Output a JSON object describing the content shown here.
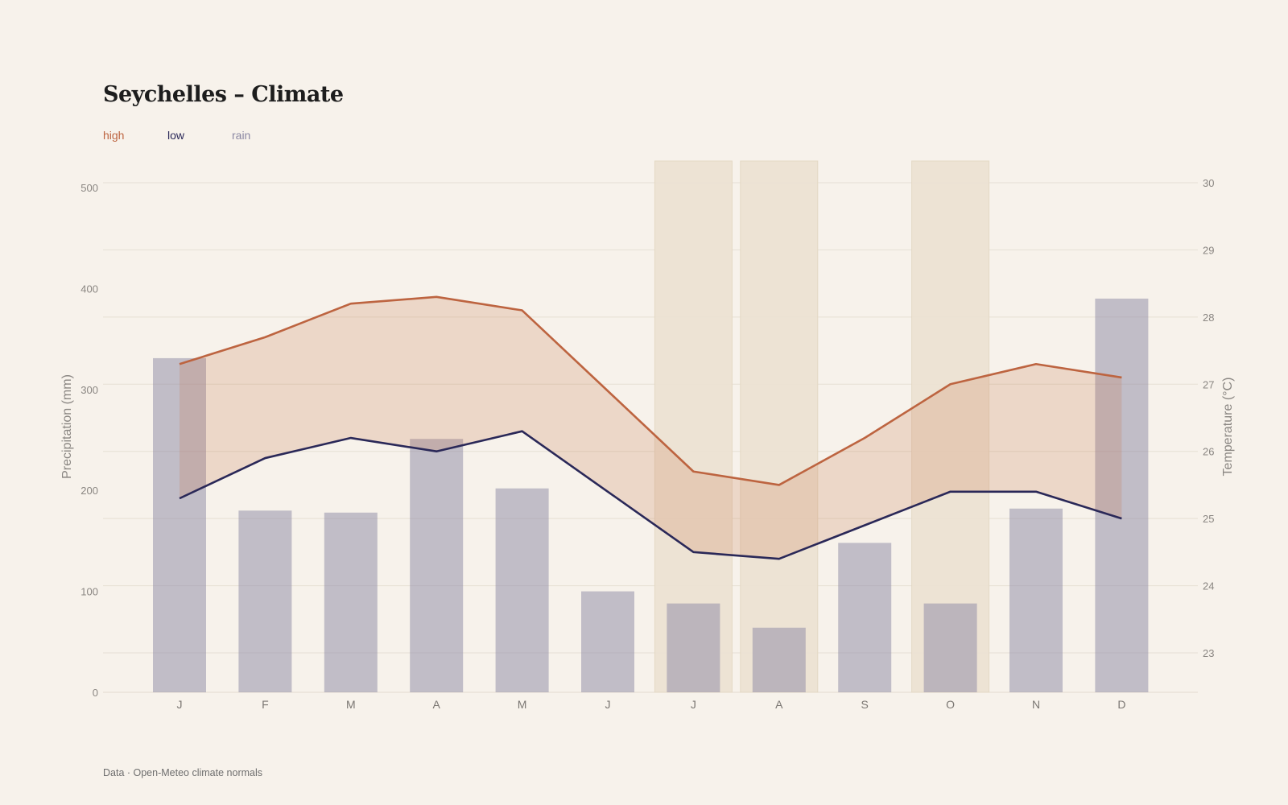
{
  "title": "Seychelles – Climate",
  "source": "Data · Open-Meteo climate normals",
  "legend": [
    {
      "label": "high",
      "color": "#bd6440"
    },
    {
      "label": "low",
      "color": "#2a2858"
    },
    {
      "label": "rain",
      "color": "#8b88a3"
    }
  ],
  "chart_data": {
    "type": "bar+line",
    "categories": [
      "J",
      "F",
      "M",
      "A",
      "M",
      "J",
      "J",
      "A",
      "S",
      "O",
      "N",
      "D"
    ],
    "series": [
      {
        "name": "rain",
        "type": "bar",
        "axis": "left",
        "values": [
          331,
          180,
          178,
          251,
          202,
          100,
          88,
          64,
          148,
          88,
          182,
          390
        ]
      },
      {
        "name": "high",
        "type": "line",
        "axis": "right",
        "values": [
          27.3,
          27.7,
          28.2,
          28.3,
          28.1,
          26.9,
          25.7,
          25.5,
          26.2,
          27.0,
          27.3,
          27.1
        ]
      },
      {
        "name": "low",
        "type": "line",
        "axis": "right",
        "values": [
          25.3,
          25.9,
          26.2,
          26.0,
          26.3,
          25.4,
          24.5,
          24.4,
          24.9,
          25.4,
          25.4,
          25.0
        ]
      }
    ],
    "highlighted_months": [
      6,
      7,
      9
    ],
    "left_axis": {
      "label": "Precipitation (mm)",
      "ylim": [
        0,
        500
      ],
      "ticks": [
        0,
        100,
        200,
        300,
        400,
        500
      ]
    },
    "right_axis": {
      "label": "Temperature (°C)",
      "ylim": [
        22.4,
        30.3
      ],
      "ticks": [
        23,
        24,
        25,
        26,
        27,
        28,
        29,
        30
      ]
    },
    "grid": true,
    "legend_position": "top-left"
  }
}
